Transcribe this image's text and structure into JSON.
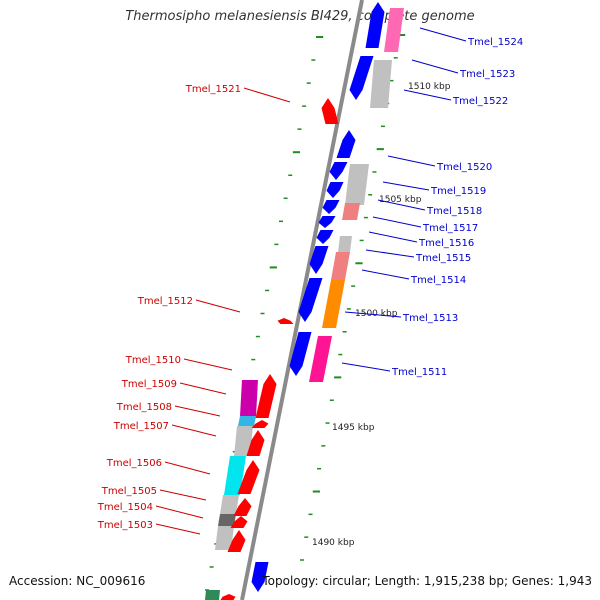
{
  "title": "Thermosipho melanesiensis BI429, complete genome",
  "footer": {
    "accession": "Accession: NC_009616",
    "summary": "Topology: circular; Length: 1,915,238 bp; Genes: 1,943"
  },
  "colors": {
    "plus_strand": "#0000ff",
    "minus_strand": "#ff0000",
    "label_right": "#0000cc",
    "label_left": "#cc0000",
    "backbone": "#888888",
    "tick": "#228b22",
    "hit_grey": "#c0c0c0",
    "hit_pink": "#ff69b4",
    "hit_magenta": "#e0007f",
    "hit_salmon": "#f08080",
    "hit_orange": "#ff8c00",
    "hit_cyan": "#00e5ee",
    "hit_lightblue": "#33b5e5",
    "hit_darkgrey": "#666666",
    "hit_green": "#2e8b57"
  },
  "scale_labels": [
    "1510 kbp",
    "1505 kbp",
    "1500 kbp",
    "1495 kbp",
    "1490 kbp"
  ],
  "genes_right": [
    "Tmel_1524",
    "Tmel_1523",
    "Tmel_1522",
    "Tmel_1520",
    "Tmel_1519",
    "Tmel_1518",
    "Tmel_1517",
    "Tmel_1516",
    "Tmel_1515",
    "Tmel_1514",
    "Tmel_1513",
    "Tmel_1511"
  ],
  "genes_left": [
    "Tmel_1521",
    "Tmel_1512",
    "Tmel_1510",
    "Tmel_1509",
    "Tmel_1508",
    "Tmel_1507",
    "Tmel_1506",
    "Tmel_1505",
    "Tmel_1504",
    "Tmel_1503"
  ]
}
